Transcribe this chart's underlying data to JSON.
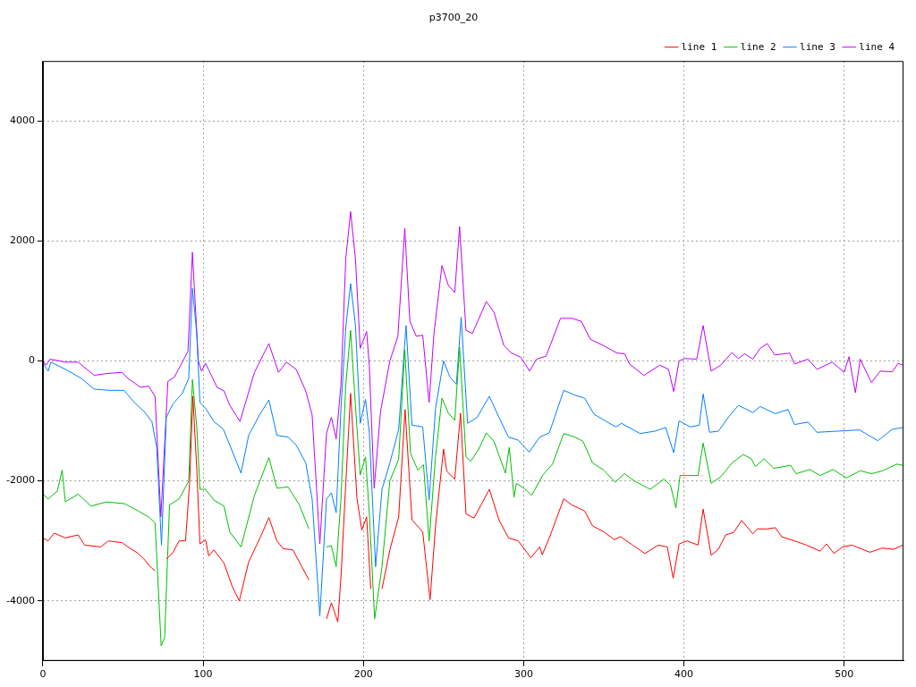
{
  "chart_data": {
    "type": "line",
    "title": "p3700_20",
    "xlim": [
      0,
      537
    ],
    "xticks": [
      0,
      100,
      200,
      300,
      400,
      500
    ],
    "ylim": [
      -5000,
      5000
    ],
    "yticks": [
      -4000,
      -2000,
      0,
      2000,
      4000
    ],
    "grid": true,
    "legend": "top right",
    "marker": "none",
    "line_style": "solid",
    "series": [
      {
        "name": "line 1",
        "color": "#ff0000",
        "x": [
          0,
          3.3,
          7,
          14,
          22,
          26,
          36,
          41,
          49.5,
          53,
          59,
          63,
          67,
          70,
          72,
          75,
          77,
          81,
          85,
          89,
          91.5,
          93.6,
          96,
          98,
          101.5,
          103.5,
          106.7,
          113,
          118,
          122.5,
          128.4,
          136,
          141,
          146,
          150,
          156,
          162,
          166,
          170,
          174.2,
          177,
          180,
          184,
          186,
          189,
          192,
          196,
          199,
          202,
          204.6,
          206.7,
          208.6,
          211.6,
          216.5,
          222,
          226,
          230.3,
          237,
          241.6,
          245,
          250,
          252,
          257,
          260.6,
          264,
          269,
          278.6,
          284.6,
          290.5,
          296.6,
          304.5,
          310,
          311.6,
          316,
          325,
          330,
          338,
          343,
          350,
          356.6,
          360.5,
          368,
          375.6,
          384,
          389.6,
          393.3,
          397,
          402,
          408.8,
          412,
          417,
          421.5,
          426,
          431,
          436,
          443,
          446,
          452,
          457,
          461,
          469,
          476.5,
          485,
          489,
          493.6,
          499,
          505,
          516,
          523.6,
          531,
          536.5
        ],
        "values": [
          -2950,
          -3000,
          -2870,
          -2950,
          -2900,
          -3070,
          -3100,
          -3000,
          -3030,
          -3100,
          -3200,
          -3300,
          -3430,
          -3500,
          null,
          null,
          -3300,
          -3200,
          -3000,
          -3000,
          -2040,
          -590,
          -1800,
          -3050,
          -2980,
          -3250,
          -3150,
          -3370,
          -3750,
          -4000,
          -3350,
          -2920,
          -2610,
          -3000,
          -3130,
          -3150,
          -3450,
          -3650,
          null,
          null,
          -4300,
          -4030,
          -4350,
          -3600,
          -2040,
          -540,
          -2300,
          -2820,
          -2600,
          -3800,
          null,
          null,
          -3800,
          -3150,
          -2600,
          -810,
          -2650,
          -2850,
          -3980,
          -2750,
          -1470,
          -1840,
          -1970,
          -870,
          -2550,
          -2620,
          -2140,
          -2650,
          -2950,
          -3000,
          -3280,
          -3100,
          -3230,
          -2950,
          -2300,
          -2400,
          -2500,
          -2750,
          -2850,
          -2980,
          -2930,
          -3070,
          -3210,
          -3070,
          -3100,
          -3620,
          -3050,
          -3000,
          -3070,
          -2470,
          -3240,
          -3140,
          -2900,
          -2860,
          -2660,
          -2880,
          -2800,
          -2800,
          -2780,
          -2930,
          -3000,
          -3070,
          -3170,
          -3050,
          -3210,
          -3100,
          -3070,
          -3190,
          -3120,
          -3140,
          -3070
        ]
      },
      {
        "name": "line 2",
        "color": "#00c000",
        "x": [
          0,
          3.3,
          9,
          12,
          14,
          22,
          30,
          39.6,
          51,
          59.4,
          66,
          70,
          73.8,
          76,
          79,
          85,
          91,
          93.3,
          96,
          98,
          101.5,
          106.7,
          113,
          116.6,
          123.6,
          132,
          141,
          146,
          153,
          160,
          166,
          172.8,
          177,
          180,
          183,
          186,
          189,
          192,
          195,
          198,
          201.3,
          203.7,
          207,
          211.6,
          216.5,
          222,
          225.8,
          229.4,
          234,
          237.5,
          241,
          245,
          249,
          253,
          257,
          260,
          264,
          267,
          272,
          276.7,
          281.5,
          288.6,
          291,
          294,
          295.5,
          300,
          305,
          312,
          318,
          325,
          332,
          337,
          343,
          350,
          357,
          363,
          369,
          379,
          387.5,
          391.6,
          395,
          397.6,
          408.8,
          412,
          417,
          423,
          430,
          437,
          442,
          444.6,
          450,
          456,
          466.6,
          470,
          478.6,
          485,
          493,
          501.5,
          510,
          517,
          524,
          533,
          536.5
        ],
        "values": [
          -2220,
          -2300,
          -2170,
          -1820,
          -2350,
          -2220,
          -2420,
          -2350,
          -2380,
          -2500,
          -2600,
          -2700,
          -4750,
          -4600,
          -2400,
          -2300,
          -2000,
          -310,
          -1100,
          -2140,
          -2140,
          -2320,
          -2420,
          -2850,
          -3100,
          -2240,
          -1610,
          -2120,
          -2100,
          -2400,
          -2800,
          null,
          -3100,
          -3080,
          -3430,
          -2300,
          -390,
          510,
          -740,
          -1900,
          -1600,
          -2550,
          -4300,
          -3430,
          -2000,
          -1640,
          190,
          -1540,
          -1820,
          -1730,
          -3000,
          -1600,
          -620,
          -870,
          -990,
          230,
          -1600,
          -1670,
          -1470,
          -1200,
          -1340,
          -1870,
          -1440,
          -2270,
          -2040,
          -2120,
          -2240,
          -1900,
          -1720,
          -1210,
          -1270,
          -1340,
          -1700,
          -1820,
          -2020,
          -1880,
          -2000,
          -2140,
          -1970,
          -2070,
          -2450,
          -1910,
          -1910,
          -1370,
          -2040,
          -1930,
          -1700,
          -1560,
          -1630,
          -1760,
          -1630,
          -1790,
          -1740,
          -1880,
          -1810,
          -1910,
          -1810,
          -1950,
          -1830,
          -1880,
          -1830,
          -1720,
          -1740
        ]
      },
      {
        "name": "line 3",
        "color": "#0080ff",
        "x": [
          0,
          3.3,
          5,
          14,
          24,
          32,
          41.6,
          50.6,
          57,
          63,
          68,
          71,
          74,
          77,
          81,
          87,
          91,
          93.3,
          96,
          98,
          101.5,
          106.7,
          112.6,
          116.6,
          123.6,
          128.4,
          135.4,
          141,
          146,
          153,
          158,
          164,
          168,
          172.8,
          177,
          180,
          183,
          186,
          189,
          192,
          195,
          198,
          201.3,
          203.7,
          207.6,
          211.6,
          216.5,
          222,
          226.6,
          230.3,
          237,
          241,
          245,
          250,
          254,
          258,
          261,
          265,
          271,
          278.6,
          284.6,
          290.5,
          296.6,
          303.4,
          310,
          316,
          325,
          332,
          338,
          344,
          351.6,
          357.6,
          361,
          372.6,
          382,
          388.6,
          393.6,
          397,
          404,
          409.6,
          412,
          416,
          421.5,
          428,
          434,
          443,
          447.6,
          457,
          465,
          469,
          477.5,
          483,
          496,
          509.5,
          521,
          530,
          536.5
        ],
        "values": [
          -30,
          -170,
          -20,
          -140,
          -290,
          -470,
          -490,
          -490,
          -690,
          -840,
          -1010,
          -1440,
          -3070,
          -940,
          -720,
          -540,
          -290,
          1210,
          460,
          -690,
          -790,
          -1010,
          -1140,
          -1400,
          -1870,
          -1240,
          -890,
          -650,
          -1240,
          -1270,
          -1400,
          -1700,
          -2300,
          -4250,
          -2300,
          -2200,
          -2530,
          -790,
          560,
          1290,
          610,
          -1040,
          -640,
          -1200,
          -3430,
          -2140,
          -1700,
          -1140,
          590,
          -1070,
          -1100,
          -2320,
          -790,
          0,
          -270,
          -390,
          730,
          -1040,
          -940,
          -590,
          -940,
          -1270,
          -1320,
          -1520,
          -1270,
          -1200,
          -490,
          -570,
          -620,
          -890,
          -1010,
          -1100,
          -1040,
          -1210,
          -1170,
          -1110,
          -1530,
          -1000,
          -1100,
          -1070,
          -550,
          -1190,
          -1170,
          -930,
          -740,
          -860,
          -760,
          -880,
          -810,
          -1060,
          -1020,
          -1190,
          -1170,
          -1150,
          -1330,
          -1140,
          -1110
        ]
      },
      {
        "name": "line 4",
        "color": "#c000ff",
        "x": [
          0,
          2,
          4.5,
          14,
          22,
          32,
          39.6,
          49.4,
          53,
          61,
          66,
          70,
          73.6,
          78,
          82,
          87,
          90.5,
          93.3,
          97,
          99,
          101.5,
          108.7,
          113,
          116.6,
          123,
          132,
          141,
          147,
          152,
          158,
          164,
          168,
          172.8,
          177,
          180,
          183,
          186,
          189,
          192,
          195,
          198,
          202,
          203.7,
          206.7,
          210.7,
          216.5,
          221.5,
          225.8,
          229,
          233,
          237,
          241,
          244,
          249,
          253,
          257,
          260,
          264,
          268,
          276.7,
          281.5,
          287.6,
          292.5,
          298.3,
          303.7,
          308,
          314,
          323,
          330,
          336,
          341.6,
          349.5,
          358.4,
          363,
          366,
          375,
          385,
          390.4,
          393.6,
          397,
          400.6,
          408,
          412,
          417,
          423,
          430,
          434,
          438,
          443,
          447.6,
          452,
          456.6,
          466,
          469,
          477.5,
          483,
          492.5,
          500,
          503,
          507,
          510,
          517,
          522.5,
          530,
          533.7,
          536.5
        ],
        "values": [
          0,
          -70,
          30,
          -20,
          -20,
          -240,
          -210,
          -190,
          -290,
          -440,
          -420,
          -590,
          -2600,
          -340,
          -270,
          -20,
          160,
          1810,
          0,
          -170,
          -40,
          -440,
          -500,
          -740,
          -1010,
          -190,
          290,
          -190,
          -20,
          -140,
          -500,
          -900,
          -3050,
          -1200,
          -940,
          -1300,
          -390,
          1710,
          2490,
          1710,
          210,
          490,
          -90,
          -2120,
          -840,
          0,
          410,
          2210,
          660,
          410,
          430,
          -690,
          450,
          1590,
          1260,
          1140,
          2240,
          510,
          460,
          990,
          810,
          260,
          130,
          60,
          -170,
          30,
          80,
          710,
          710,
          660,
          360,
          260,
          130,
          120,
          -50,
          -240,
          -70,
          -140,
          -510,
          0,
          40,
          30,
          590,
          -170,
          -70,
          140,
          40,
          120,
          30,
          210,
          290,
          100,
          130,
          -50,
          30,
          -140,
          -20,
          -190,
          70,
          -530,
          30,
          -360,
          -170,
          -180,
          -40,
          -70
        ]
      }
    ]
  }
}
